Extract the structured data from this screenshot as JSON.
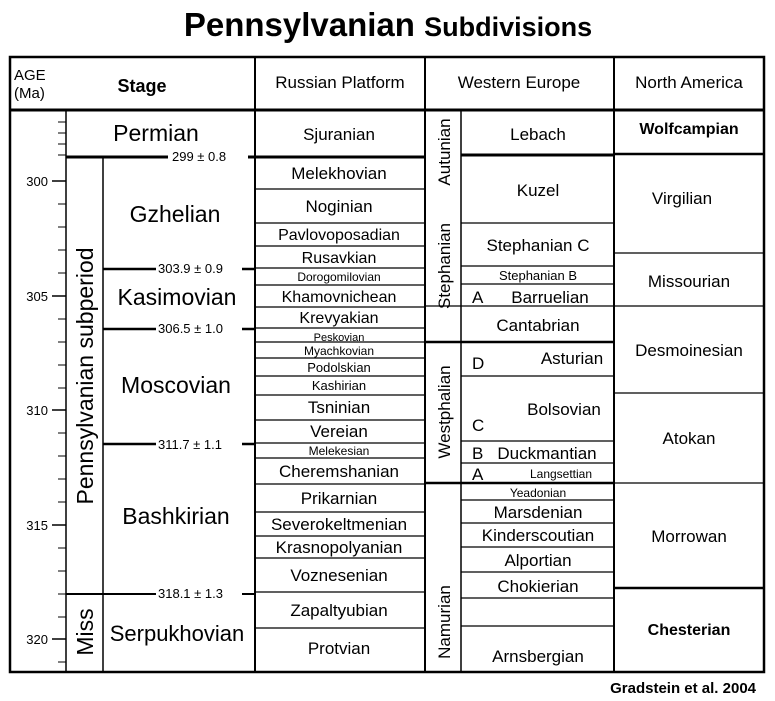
{
  "title": {
    "main": "Pennsylvanian",
    "sub": "Subdivisions"
  },
  "headers": {
    "age": [
      "AGE",
      "(Ma)"
    ],
    "stage": "Stage",
    "russian": "Russian Platform",
    "western": "Western Europe",
    "north": "North America"
  },
  "age_ticks": [
    "300",
    "305",
    "310",
    "315",
    "320"
  ],
  "subperiods": {
    "penn": "Pennsylvanian subperiod",
    "miss": "Miss"
  },
  "stages": {
    "permian": "Permian",
    "gzhelian": "Gzhelian",
    "kasimovian": "Kasimovian",
    "moscovian": "Moscovian",
    "bashkirian": "Bashkirian",
    "serpukhovian": "Serpukhovian"
  },
  "boundaries": [
    "299 ± 0.8",
    "303.9 ± 0.9",
    "306.5 ± 1.0",
    "311.7 ± 1.1",
    "318.1 ± 1.3"
  ],
  "russian": {
    "sjuranian": "Sjuranian",
    "melekhovian": "Melekhovian",
    "noginian": "Noginian",
    "pavlovoposadian": "Pavlovoposadian",
    "rusavkian": "Rusavkian",
    "dorogomilovian": "Dorogomilovian",
    "khamovnichean": "Khamovnichean",
    "krevyakian": "Krevyakian",
    "peskovian": "Peskovian",
    "myachkovian": "Myachkovian",
    "podolskian": "Podolskian",
    "kashirian": "Kashirian",
    "tsninian": "Tsninian",
    "vereian": "Vereian",
    "melekesian": "Melekesian",
    "cheremshanian": "Cheremshanian",
    "prikarnian": "Prikarnian",
    "severokeltmenian": "Severokeltmenian",
    "krasnopolyanian": "Krasnopolyanian",
    "voznesenian": "Voznesenian",
    "zapaltyubian": "Zapaltyubian",
    "protvian": "Protvian"
  },
  "western_series": {
    "autunian": "Autunian",
    "stephanian": "Stephanian",
    "westphalian": "Westphalian",
    "namurian": "Namurian"
  },
  "western": {
    "lebach": "Lebach",
    "kuzel": "Kuzel",
    "stephanian_c": "Stephanian C",
    "stephanian_b": "Stephanian B",
    "a1": "A",
    "barruelian": "Barruelian",
    "cantabrian": "Cantabrian",
    "d": "D",
    "asturian": "Asturian",
    "c": "C",
    "bolsovian": "Bolsovian",
    "b": "B",
    "duckmantian": "Duckmantian",
    "a2": "A",
    "langsettian": "Langsettian",
    "yeadonian": "Yeadonian",
    "marsdenian": "Marsdenian",
    "kinderscoutian": "Kinderscoutian",
    "alportian": "Alportian",
    "chokierian": "Chokierian",
    "arnsbergian": "Arnsbergian"
  },
  "north": {
    "wolfcampian": "Wolfcampian",
    "virgilian": "Virgilian",
    "missourian": "Missourian",
    "desmoinesian": "Desmoinesian",
    "atokan": "Atokan",
    "morrowan": "Morrowan",
    "chesterian": "Chesterian"
  },
  "credit": "Gradstein et al. 2004"
}
